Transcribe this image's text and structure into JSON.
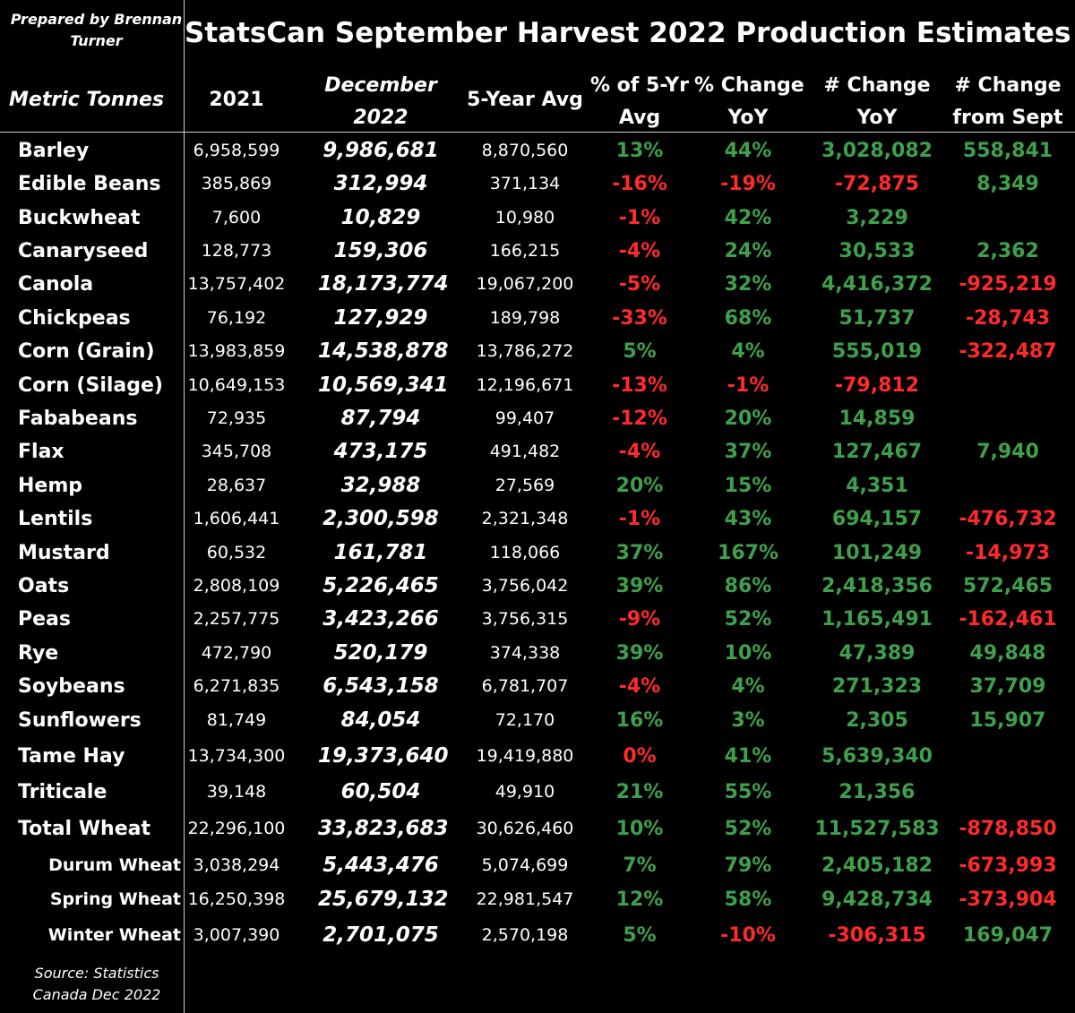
{
  "header": {
    "prepared_by": "Prepared by Brennan Turner",
    "title": "StatsCan September Harvest 2022 Production Estimates"
  },
  "columns": {
    "metric": "Metric Tonnes",
    "y2021": "2021",
    "dec2022_line1": "December",
    "dec2022_line2": "2022",
    "avg5": "5-Year Avg",
    "pct5_line1": "% of 5-Yr",
    "pct5_line2": "Avg",
    "pctyoy_line1": "% Change",
    "pctyoy_line2": "YoY",
    "numyoy_line1": "# Change",
    "numyoy_line2": "YoY",
    "numsept_line1": "# Change",
    "numsept_line2": "from Sept"
  },
  "colors": {
    "positive": "#3fa04b",
    "negative": "#ff2a2a",
    "text": "#ffffff",
    "background": "#000000"
  },
  "rows": [
    {
      "name": "Barley",
      "y2021": "6,958,599",
      "dec2022": "9,986,681",
      "avg5": "8,870,560",
      "pct5": "13%",
      "pctyoy": "44%",
      "numyoy": "3,028,082",
      "numsept": "558,841"
    },
    {
      "name": "Edible Beans",
      "y2021": "385,869",
      "dec2022": "312,994",
      "avg5": "371,134",
      "pct5": "-16%",
      "pctyoy": "-19%",
      "numyoy": "-72,875",
      "numsept": "8,349"
    },
    {
      "name": "Buckwheat",
      "y2021": "7,600",
      "dec2022": "10,829",
      "avg5": "10,980",
      "pct5": "-1%",
      "pctyoy": "42%",
      "numyoy": "3,229",
      "numsept": ""
    },
    {
      "name": "Canaryseed",
      "y2021": "128,773",
      "dec2022": "159,306",
      "avg5": "166,215",
      "pct5": "-4%",
      "pctyoy": "24%",
      "numyoy": "30,533",
      "numsept": "2,362"
    },
    {
      "name": "Canola",
      "y2021": "13,757,402",
      "dec2022": "18,173,774",
      "avg5": "19,067,200",
      "pct5": "-5%",
      "pctyoy": "32%",
      "numyoy": "4,416,372",
      "numsept": "-925,219"
    },
    {
      "name": "Chickpeas",
      "y2021": "76,192",
      "dec2022": "127,929",
      "avg5": "189,798",
      "pct5": "-33%",
      "pctyoy": "68%",
      "numyoy": "51,737",
      "numsept": "-28,743"
    },
    {
      "name": "Corn (Grain)",
      "y2021": "13,983,859",
      "dec2022": "14,538,878",
      "avg5": "13,786,272",
      "pct5": "5%",
      "pctyoy": "4%",
      "numyoy": "555,019",
      "numsept": "-322,487"
    },
    {
      "name": "Corn (Silage)",
      "y2021": "10,649,153",
      "dec2022": "10,569,341",
      "avg5": "12,196,671",
      "pct5": "-13%",
      "pctyoy": "-1%",
      "numyoy": "-79,812",
      "numsept": ""
    },
    {
      "name": "Fababeans",
      "y2021": "72,935",
      "dec2022": "87,794",
      "avg5": "99,407",
      "pct5": "-12%",
      "pctyoy": "20%",
      "numyoy": "14,859",
      "numsept": ""
    },
    {
      "name": "Flax",
      "y2021": "345,708",
      "dec2022": "473,175",
      "avg5": "491,482",
      "pct5": "-4%",
      "pctyoy": "37%",
      "numyoy": "127,467",
      "numsept": "7,940"
    },
    {
      "name": "Hemp",
      "y2021": "28,637",
      "dec2022": "32,988",
      "avg5": "27,569",
      "pct5": "20%",
      "pctyoy": "15%",
      "numyoy": "4,351",
      "numsept": ""
    },
    {
      "name": "Lentils",
      "y2021": "1,606,441",
      "dec2022": "2,300,598",
      "avg5": "2,321,348",
      "pct5": "-1%",
      "pctyoy": "43%",
      "numyoy": "694,157",
      "numsept": "-476,732"
    },
    {
      "name": "Mustard",
      "y2021": "60,532",
      "dec2022": "161,781",
      "avg5": "118,066",
      "pct5": "37%",
      "pctyoy": "167%",
      "numyoy": "101,249",
      "numsept": "-14,973"
    },
    {
      "name": "Oats",
      "y2021": "2,808,109",
      "dec2022": "5,226,465",
      "avg5": "3,756,042",
      "pct5": "39%",
      "pctyoy": "86%",
      "numyoy": "2,418,356",
      "numsept": "572,465"
    },
    {
      "name": "Peas",
      "y2021": "2,257,775",
      "dec2022": "3,423,266",
      "avg5": "3,756,315",
      "pct5": "-9%",
      "pctyoy": "52%",
      "numyoy": "1,165,491",
      "numsept": "-162,461"
    },
    {
      "name": "Rye",
      "y2021": "472,790",
      "dec2022": "520,179",
      "avg5": "374,338",
      "pct5": "39%",
      "pctyoy": "10%",
      "numyoy": "47,389",
      "numsept": "49,848"
    },
    {
      "name": "Soybeans",
      "y2021": "6,271,835",
      "dec2022": "6,543,158",
      "avg5": "6,781,707",
      "pct5": "-4%",
      "pctyoy": "4%",
      "numyoy": "271,323",
      "numsept": "37,709"
    },
    {
      "name": "Sunflowers",
      "y2021": "81,749",
      "dec2022": "84,054",
      "avg5": "72,170",
      "pct5": "16%",
      "pctyoy": "3%",
      "numyoy": "2,305",
      "numsept": "15,907"
    },
    {
      "name": "Tame Hay",
      "y2021": "13,734,300",
      "dec2022": "19,373,640",
      "avg5": "19,419,880",
      "pct5": "0%",
      "pctyoy": "41%",
      "numyoy": "5,639,340",
      "numsept": ""
    },
    {
      "name": "Triticale",
      "y2021": "39,148",
      "dec2022": "60,504",
      "avg5": "49,910",
      "pct5": "21%",
      "pctyoy": "55%",
      "numyoy": "21,356",
      "numsept": ""
    },
    {
      "name": "Total Wheat",
      "y2021": "22,296,100",
      "dec2022": "33,823,683",
      "avg5": "30,626,460",
      "pct5": "10%",
      "pctyoy": "52%",
      "numyoy": "11,527,583",
      "numsept": "-878,850"
    },
    {
      "name": "Durum Wheat",
      "sub": true,
      "y2021": "3,038,294",
      "dec2022": "5,443,476",
      "avg5": "5,074,699",
      "pct5": "7%",
      "pctyoy": "79%",
      "numyoy": "2,405,182",
      "numsept": "-673,993"
    },
    {
      "name": "Spring Wheat",
      "sub": true,
      "y2021": "16,250,398",
      "dec2022": "25,679,132",
      "avg5": "22,981,547",
      "pct5": "12%",
      "pctyoy": "58%",
      "numyoy": "9,428,734",
      "numsept": "-373,904"
    },
    {
      "name": "Winter Wheat",
      "sub": true,
      "y2021": "3,007,390",
      "dec2022": "2,701,075",
      "avg5": "2,570,198",
      "pct5": "5%",
      "pctyoy": "-10%",
      "numyoy": "-306,315",
      "numsept": "169,047"
    }
  ],
  "footer": {
    "source": "Source: Statistics Canada Dec 2022"
  }
}
